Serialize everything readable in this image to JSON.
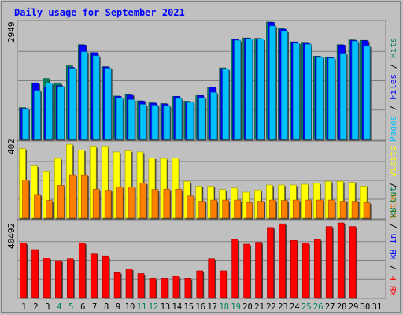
{
  "title": "Daily usage for September 2021",
  "colors": {
    "hits": "#00805c",
    "files": "#0000ff",
    "pages": "#00c0ff",
    "visits": "#ffff00",
    "sites": "#ff8000",
    "kbin": "#0000ff",
    "kbout": "#008040",
    "kbf": "#ff0000",
    "panel_bg": "#c0c0c0",
    "weekend_label": "#00805c"
  },
  "chart_data": [
    {
      "type": "bar",
      "name": "hits-files-pages",
      "ymax_label": "2949",
      "ymax": 2949,
      "legend": {
        "pages": "Pages",
        "files": "Files",
        "hits": "Hits",
        "sep": " / "
      },
      "series": [
        {
          "name": "Hits",
          "values": [
            800,
            1420,
            1530,
            1420,
            1850,
            2380,
            2180,
            1830,
            1090,
            1140,
            970,
            920,
            900,
            1080,
            960,
            1120,
            1320,
            1800,
            2520,
            2550,
            2540,
            2949,
            2800,
            2450,
            2440,
            2090,
            2070,
            2380,
            2500,
            2490,
            null
          ]
        },
        {
          "name": "Files",
          "values": [
            780,
            1420,
            1320,
            1350,
            1810,
            2370,
            2180,
            1820,
            1080,
            1130,
            960,
            910,
            890,
            1080,
            940,
            1100,
            1310,
            1780,
            2510,
            2540,
            2530,
            2940,
            2770,
            2450,
            2430,
            2080,
            2060,
            2370,
            2490,
            2480,
            null
          ]
        },
        {
          "name": "Pages",
          "values": [
            770,
            1230,
            1410,
            1330,
            1790,
            2200,
            2100,
            1790,
            1040,
            1000,
            880,
            860,
            850,
            1030,
            930,
            1050,
            1180,
            1770,
            2490,
            2520,
            2520,
            2850,
            2720,
            2420,
            2390,
            2060,
            2040,
            2160,
            2470,
            2350,
            null
          ]
        }
      ]
    },
    {
      "type": "bar",
      "name": "visits-sites",
      "ymax_label": "402",
      "ymax": 402,
      "legend": {
        "sites": "Sites",
        "visits": "Visits",
        "sep": " / "
      },
      "series": [
        {
          "name": "Visits",
          "values": [
            370,
            278,
            250,
            318,
            393,
            362,
            380,
            380,
            352,
            358,
            352,
            320,
            318,
            320,
            196,
            170,
            170,
            152,
            160,
            138,
            150,
            176,
            176,
            176,
            180,
            185,
            196,
            196,
            190,
            170,
            null
          ]
        },
        {
          "name": "Sites",
          "values": [
            203,
            126,
            94,
            174,
            230,
            230,
            154,
            148,
            164,
            166,
            186,
            152,
            154,
            154,
            118,
            90,
            96,
            96,
            96,
            82,
            90,
            96,
            94,
            96,
            96,
            96,
            96,
            90,
            90,
            82,
            null
          ]
        }
      ]
    },
    {
      "type": "bar",
      "name": "kbytes",
      "ymax_label": "40492",
      "ymax": 40492,
      "legend": {
        "kbf": "kB F",
        "kbin": "kB In",
        "kbout": "kB Out",
        "sep": " / "
      },
      "series": [
        {
          "name": "kB F",
          "values": [
            29500,
            26000,
            21500,
            20000,
            21000,
            29500,
            24000,
            22500,
            13500,
            15500,
            13000,
            10500,
            10500,
            11500,
            10500,
            14500,
            21000,
            14500,
            31500,
            29000,
            30000,
            38000,
            40000,
            31000,
            29500,
            31500,
            38500,
            40492,
            38500,
            null,
            null
          ]
        }
      ]
    }
  ],
  "days": [
    "1",
    "2",
    "3",
    "4",
    "5",
    "6",
    "7",
    "8",
    "9",
    "10",
    "11",
    "12",
    "13",
    "14",
    "15",
    "16",
    "17",
    "18",
    "19",
    "20",
    "21",
    "22",
    "23",
    "24",
    "25",
    "26",
    "27",
    "28",
    "29",
    "30",
    "31"
  ],
  "weekend_days": [
    4,
    5,
    11,
    12,
    18,
    19,
    25,
    26
  ]
}
